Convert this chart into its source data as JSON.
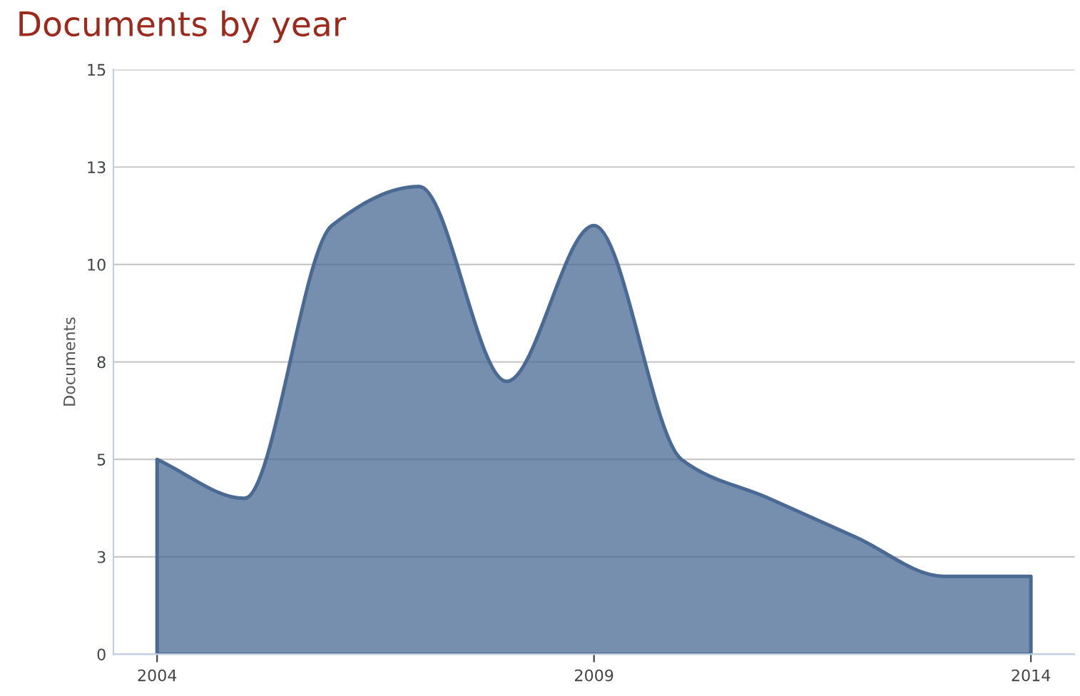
{
  "chart_data": {
    "type": "area",
    "title": "Documents by year",
    "ylabel": "Documents",
    "x": [
      2004,
      2005,
      2006,
      2007,
      2008,
      2009,
      2010,
      2011,
      2012,
      2013,
      2014
    ],
    "series": [
      {
        "color": "#4a6a94",
        "values": [
          5,
          4,
          11,
          12,
          7,
          11,
          5,
          4,
          3,
          2,
          2
        ]
      }
    ],
    "xlim": [
      2003.5,
      2014.5
    ],
    "xticks": [
      2004,
      2009,
      2014
    ],
    "ylim": [
      0,
      15
    ],
    "yticks": [
      0,
      {
        "value": 2.5,
        "label": "3"
      },
      5,
      {
        "value": 7.5,
        "label": "8"
      },
      10,
      {
        "value": 12.5,
        "label": "13"
      },
      15
    ],
    "grid": "y",
    "legend": false
  }
}
